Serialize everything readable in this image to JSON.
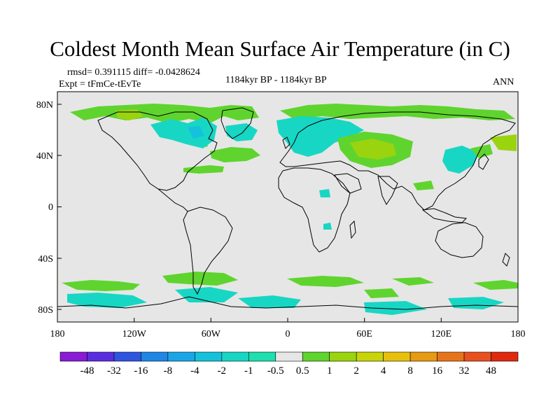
{
  "chart_data": {
    "type": "heatmap",
    "title": "Coldest Month Mean Surface Air Temperature (in C)",
    "stats_text": "rmsd= 0.391115   diff= -0.0428624",
    "expt_text": "Expt = tFmCe-tEvTe",
    "center_text": "1184kyr BP - 1184kyr BP",
    "season_text": "ANN",
    "x_ticks": [
      "180",
      "120W",
      "60W",
      "0",
      "60E",
      "120E",
      "180"
    ],
    "y_ticks": [
      "80N",
      "40N",
      "0",
      "40S",
      "80S"
    ],
    "xlim": [
      -180,
      180
    ],
    "ylim": [
      -90,
      90
    ],
    "colorbar": {
      "labels": [
        "-48",
        "-32",
        "-16",
        "-8",
        "-4",
        "-2",
        "-1",
        "-0.5",
        "0.5",
        "1",
        "2",
        "4",
        "8",
        "16",
        "32",
        "48"
      ],
      "colors": [
        "#8a1bd6",
        "#5a2ee0",
        "#2f55e0",
        "#1f86e6",
        "#1aa6e6",
        "#14c2dc",
        "#18d6c4",
        "#1edfae",
        "#e6e6e6",
        "#5fd42e",
        "#9ad40e",
        "#c8d408",
        "#e8c00c",
        "#e89a12",
        "#e8741a",
        "#e85020",
        "#e02a10"
      ]
    }
  }
}
